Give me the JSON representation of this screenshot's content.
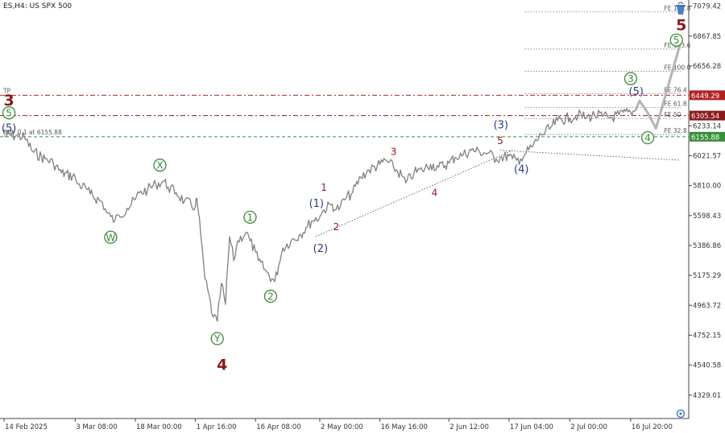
{
  "window": {
    "title": "ES,H4:  US SPX 500"
  },
  "colors": {
    "price": "#808080",
    "projection": "#b4b4b4",
    "red": "#8b1a1a",
    "blue": "#2c3a7a",
    "green": "#3b8a3b",
    "tp": "#b22222",
    "sl": "#8b1a1a",
    "buy": "#3a8f3a",
    "fib": "#777777"
  },
  "icons": {
    "top_right": "bucket-icon",
    "bottom_right": "circle-marker-icon"
  },
  "chart_data": {
    "type": "line",
    "title": "ES,H4:  US SPX 500",
    "xlabel": "",
    "ylabel": "",
    "ylim": [
      4163,
      7123
    ],
    "y_ticks": [
      "7079.42",
      "6867.85",
      "6656.28",
      "6233.14",
      "6021.57",
      "5810.00",
      "5598.43",
      "5386.86",
      "5175.29",
      "4963.72",
      "4752.15",
      "4540.58",
      "4329.01"
    ],
    "x_ticks": [
      "14 Feb 2025",
      "3 Mar 08:00",
      "18 Mar 00:00",
      "1 Apr 16:00",
      "16 Apr 08:00",
      "2 May 00:00",
      "16 May 16:00",
      "2 Jun 12:00",
      "17 Jun 04:00",
      "2 Jul 00:00",
      "16 Jul 20:00"
    ],
    "series": [
      {
        "values": [
          [
            "14 Feb 2025",
            6160
          ],
          [
            "17 Feb 2025",
            6165
          ],
          [
            "19 Feb 2025",
            6150
          ],
          [
            "21 Feb 2025",
            6050
          ],
          [
            "24 Feb 2025",
            6000
          ],
          [
            "26 Feb 2025",
            5970
          ],
          [
            "28 Feb 2025",
            5900
          ],
          [
            "3 Mar 08:00",
            5870
          ],
          [
            "4 Mar 2025",
            5820
          ],
          [
            "6 Mar 2025",
            5790
          ],
          [
            "7 Mar 2025",
            5750
          ],
          [
            "10 Mar 2025",
            5690
          ],
          [
            "11 Mar 2025",
            5620
          ],
          [
            "12 Mar 2025",
            5590
          ],
          [
            "13 Mar 2025",
            5560
          ],
          [
            "14 Mar 2025",
            5600
          ],
          [
            "16 Mar 2025",
            5650
          ],
          [
            "18 Mar 00:00",
            5710
          ],
          [
            "19 Mar 2025",
            5760
          ],
          [
            "21 Mar 2025",
            5780
          ],
          [
            "23 Mar 2025",
            5820
          ],
          [
            "25 Mar 2025",
            5840
          ],
          [
            "26 Mar 2025",
            5800
          ],
          [
            "28 Mar 2025",
            5760
          ],
          [
            "30 Mar 2025",
            5700
          ],
          [
            "1 Apr 16:00",
            5660
          ],
          [
            "2 Apr 2025",
            5720
          ],
          [
            "3 Apr 2025",
            5450
          ],
          [
            "4 Apr 2025",
            5150
          ],
          [
            "6 Apr 2025",
            4880
          ],
          [
            "7 Apr 2025",
            4850
          ],
          [
            "8 Apr 2025",
            5120
          ],
          [
            "9 Apr 2025",
            4970
          ],
          [
            "10 Apr 2025",
            5450
          ],
          [
            "11 Apr 2025",
            5280
          ],
          [
            "12 Apr 2025",
            5420
          ],
          [
            "14 Apr 2025",
            5480
          ],
          [
            "15 Apr 2025",
            5420
          ],
          [
            "16 Apr 08:00",
            5340
          ],
          [
            "17 Apr 2025",
            5280
          ],
          [
            "19 Apr 2025",
            5200
          ],
          [
            "21 Apr 2025",
            5130
          ],
          [
            "22 Apr 2025",
            5250
          ],
          [
            "23 Apr 2025",
            5370
          ],
          [
            "25 Apr 2025",
            5420
          ],
          [
            "27 Apr 2025",
            5460
          ],
          [
            "29 Apr 2025",
            5520
          ],
          [
            "30 Apr 2025",
            5560
          ],
          [
            "2 May 00:00",
            5590
          ],
          [
            "3 May 2025",
            5640
          ],
          [
            "5 May 2025",
            5680
          ],
          [
            "6 May 2025",
            5640
          ],
          [
            "7 May 2025",
            5660
          ],
          [
            "8 May 2025",
            5710
          ],
          [
            "10 May 2025",
            5760
          ],
          [
            "12 May 2025",
            5870
          ],
          [
            "14 May 2025",
            5920
          ],
          [
            "16 May 16:00",
            5960
          ],
          [
            "18 May 2025",
            5990
          ],
          [
            "20 May 2025",
            5940
          ],
          [
            "22 May 2025",
            5880
          ],
          [
            "23 May 2025",
            5830
          ],
          [
            "25 May 2025",
            5900
          ],
          [
            "27 May 2025",
            5920
          ],
          [
            "29 May 2025",
            5960
          ],
          [
            "31 May 2025",
            5940
          ],
          [
            "2 Jun 12:00",
            5970
          ],
          [
            "4 Jun 2025",
            6010
          ],
          [
            "6 Jun 2025",
            6030
          ],
          [
            "8 Jun 2025",
            6060
          ],
          [
            "10 Jun 2025",
            6050
          ],
          [
            "12 Jun 2025",
            6040
          ],
          [
            "14 Jun 2025",
            6000
          ],
          [
            "15 Jun 2025",
            6010
          ],
          [
            "17 Jun 04:00",
            6020
          ],
          [
            "18 Jun 2025",
            6000
          ],
          [
            "19 Jun 2025",
            5990
          ],
          [
            "20 Jun 2025",
            6000
          ],
          [
            "21 Jun 2025",
            6030
          ],
          [
            "23 Jun 2025",
            6090
          ],
          [
            "25 Jun 2025",
            6170
          ],
          [
            "27 Jun 2025",
            6210
          ],
          [
            "29 Jun 2025",
            6270
          ],
          [
            "2 Jul 00:00",
            6290
          ],
          [
            "4 Jul 2025",
            6310
          ],
          [
            "6 Jul 2025",
            6290
          ],
          [
            "8 Jul 2025",
            6310
          ],
          [
            "10 Jul 2025",
            6300
          ],
          [
            "12 Jul 2025",
            6290
          ],
          [
            "14 Jul 2025",
            6310
          ],
          [
            "16 Jul 20:00",
            6330
          ],
          [
            "18 Jul 2025",
            6340
          ]
        ]
      },
      {
        "values": [
          [
            "18 Jul 2025",
            6340
          ],
          [
            "19 Jul 2025",
            6410
          ],
          [
            "21 Jul 2025",
            6325
          ],
          [
            "23 Jul 2025",
            6215
          ],
          [
            "29 Jul 2025",
            6820
          ]
        ]
      }
    ],
    "levels": [
      {
        "label": "TP",
        "price_label": "6449.29",
        "value": 6449.29
      },
      {
        "label": "SL",
        "price_label": "6305.54",
        "value": 6305.54
      },
      {
        "label": "BUY 0.1 at 6155.88",
        "price_label": "6155.88",
        "value": 6155.88
      }
    ],
    "fib_levels": [
      {
        "label": "FE 161.8",
        "value": 7039
      },
      {
        "label": "FE 123.6",
        "value": 6776
      },
      {
        "label": "FE 100.0",
        "value": 6619
      },
      {
        "label": "FE 76.4",
        "value": 6459
      },
      {
        "label": "FE 61.8",
        "value": 6363
      },
      {
        "label": "FE 50",
        "value": 6285
      },
      {
        "label": "FE 32.8",
        "value": 6172
      }
    ],
    "trendlines": [
      {
        "from": [
          "1 May 2025",
          5450
        ],
        "to": [
          "18 Jun 2025",
          6060
        ]
      },
      {
        "from": [
          "15 Jun 2025",
          6060
        ],
        "to": [
          "29 Jul 2025",
          5990
        ]
      }
    ],
    "wave_labels": [
      {
        "text": "3",
        "at": [
          "14 Feb 2025",
          6414
        ],
        "style": "red-big"
      },
      {
        "text": "(5)",
        "at": [
          "14 Feb 2025",
          6217
        ],
        "style": "blue"
      },
      {
        "text": "5",
        "at": [
          "14 Feb 2025",
          6325
        ],
        "style": "green-circle"
      },
      {
        "text": "W",
        "at": [
          "12 Mar 2025",
          5445
        ],
        "style": "green-circle"
      },
      {
        "text": "X",
        "at": [
          "24 Mar 2025",
          5955
        ],
        "style": "green-circle"
      },
      {
        "text": "Y",
        "at": [
          "7 Apr 2025",
          4728
        ],
        "style": "green-circle"
      },
      {
        "text": "4",
        "at": [
          "7 Apr 2025",
          4546
        ],
        "style": "red-big"
      },
      {
        "text": "1",
        "at": [
          "15 Apr 2025",
          5587
        ],
        "style": "green-circle"
      },
      {
        "text": "2",
        "at": [
          "20 Apr 2025",
          5028
        ],
        "style": "green-circle"
      },
      {
        "text": "(1)",
        "at": [
          "30 Apr 2025",
          5685
        ],
        "style": "blue"
      },
      {
        "text": "(2)",
        "at": [
          "1 May 2025",
          5367
        ],
        "style": "blue"
      },
      {
        "text": "1",
        "at": [
          "3 May 2025",
          5799
        ],
        "style": "red"
      },
      {
        "text": "2",
        "at": [
          "6 May 2025",
          5518
        ],
        "style": "red"
      },
      {
        "text": "3",
        "at": [
          "20 May 2025",
          6052
        ],
        "style": "red"
      },
      {
        "text": "4",
        "at": [
          "30 May 2025",
          5762
        ],
        "style": "red"
      },
      {
        "text": "5",
        "at": [
          "15 Jun 2025",
          6128
        ],
        "style": "red"
      },
      {
        "text": "(3)",
        "at": [
          "14 Jun 2025",
          6241
        ],
        "style": "blue"
      },
      {
        "text": "(4)",
        "at": [
          "19 Jun 2025",
          5929
        ],
        "style": "blue"
      },
      {
        "text": "3",
        "at": [
          "16 Jul 20:00",
          6567
        ],
        "style": "green-circle"
      },
      {
        "text": "(5)",
        "at": [
          "17 Jul 2025",
          6478
        ],
        "style": "blue"
      },
      {
        "text": "4",
        "at": [
          "21 Jul 2025",
          6149
        ],
        "style": "green-circle"
      },
      {
        "text": "5",
        "at": [
          "28 Jul 2025",
          6840
        ],
        "style": "green-circle"
      },
      {
        "text": "5",
        "at": [
          "28 Jul 2025",
          6947
        ],
        "style": "red-big"
      }
    ]
  }
}
